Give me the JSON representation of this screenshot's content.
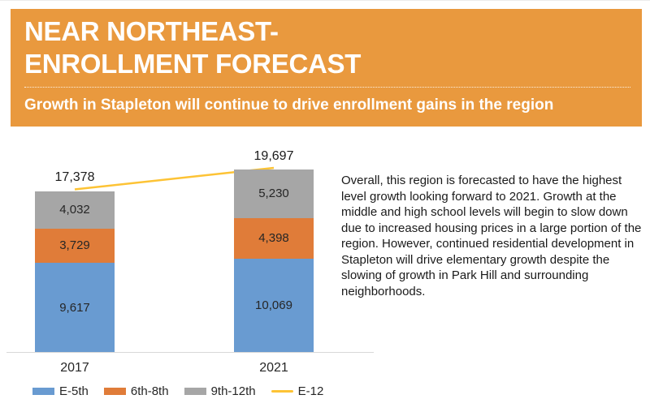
{
  "header": {
    "title_line1": "NEAR NORTHEAST-",
    "title_line2": "ENROLLMENT FORECAST",
    "subtitle": "Growth in Stapleton will continue to drive enrollment gains in the region",
    "background_color": "#E9993E"
  },
  "description": "Overall, this region is forecasted to have the highest level growth looking forward to 2021. Growth at the middle and high school levels will begin to slow down due to increased housing prices in a large portion of the region. However, continued residential development in Stapleton will drive elementary growth despite the slowing of growth in Park Hill and surrounding neighborhoods.",
  "chart_data": {
    "type": "bar",
    "stacked": true,
    "categories": [
      "2017",
      "2021"
    ],
    "series": [
      {
        "name": "E-5th",
        "color": "#699BD1",
        "values": [
          9617,
          10069
        ],
        "labels": [
          "9,617",
          "10,069"
        ]
      },
      {
        "name": "6th-8th",
        "color": "#E07C39",
        "values": [
          3729,
          4398
        ],
        "labels": [
          "3,729",
          "4,398"
        ]
      },
      {
        "name": "9th-12th",
        "color": "#A6A6A6",
        "values": [
          4032,
          5230
        ],
        "labels": [
          "4,032",
          "5,230"
        ]
      }
    ],
    "line_series": {
      "name": "E-12",
      "color": "#FDC335",
      "values": [
        17378,
        19697
      ]
    },
    "totals": [
      17378,
      19697
    ],
    "totals_labels": [
      "17,378",
      "19,697"
    ],
    "legend": [
      {
        "label": "E-5th",
        "type": "box",
        "color": "#699BD1"
      },
      {
        "label": "6th-8th",
        "type": "box",
        "color": "#E07C39"
      },
      {
        "label": "9th-12th",
        "type": "box",
        "color": "#A6A6A6"
      },
      {
        "label": "E-12",
        "type": "line",
        "color": "#FDC335"
      }
    ],
    "ylim": [
      0,
      19697
    ],
    "grid": false,
    "legend_position": "bottom",
    "axis_color": "#D8D8D8"
  }
}
